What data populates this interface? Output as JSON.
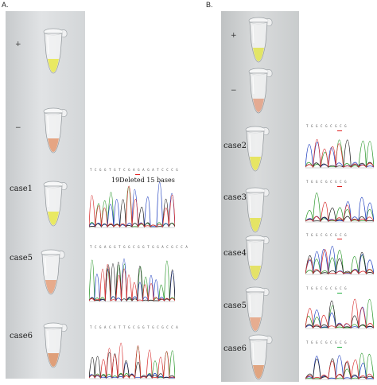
{
  "panels": [
    {
      "letter": "A.",
      "tubes": [
        {
          "label": "+",
          "liquid": "#e8e85a"
        },
        {
          "label": "−",
          "liquid": "#e4a07c"
        },
        {
          "label": "case1",
          "liquid": "#e8e85a"
        },
        {
          "label": "case5",
          "liquid": "#e6a686"
        },
        {
          "label": "case6",
          "liquid": "#dd9a72"
        }
      ],
      "annotation": "19Deleted 15 bases"
    },
    {
      "letter": "B.",
      "tubes": [
        {
          "label": "+",
          "liquid": "#e2e45e"
        },
        {
          "label": "−",
          "liquid": "#e3a58c"
        },
        {
          "label": "case2",
          "liquid": "#e6e45a"
        },
        {
          "label": "case3",
          "liquid": "#e4e35c"
        },
        {
          "label": "case4",
          "liquid": "#e4e060"
        },
        {
          "label": "case5",
          "liquid": "#e6a98a"
        },
        {
          "label": "case6",
          "liquid": "#dfa07a"
        }
      ]
    }
  ],
  "colors": {
    "trace_a": "#2f9a2f",
    "trace_c": "#1f3fbf",
    "trace_g": "#222222",
    "trace_t": "#d83030",
    "marker_red": "#e02020",
    "marker_green": "#20b040"
  }
}
